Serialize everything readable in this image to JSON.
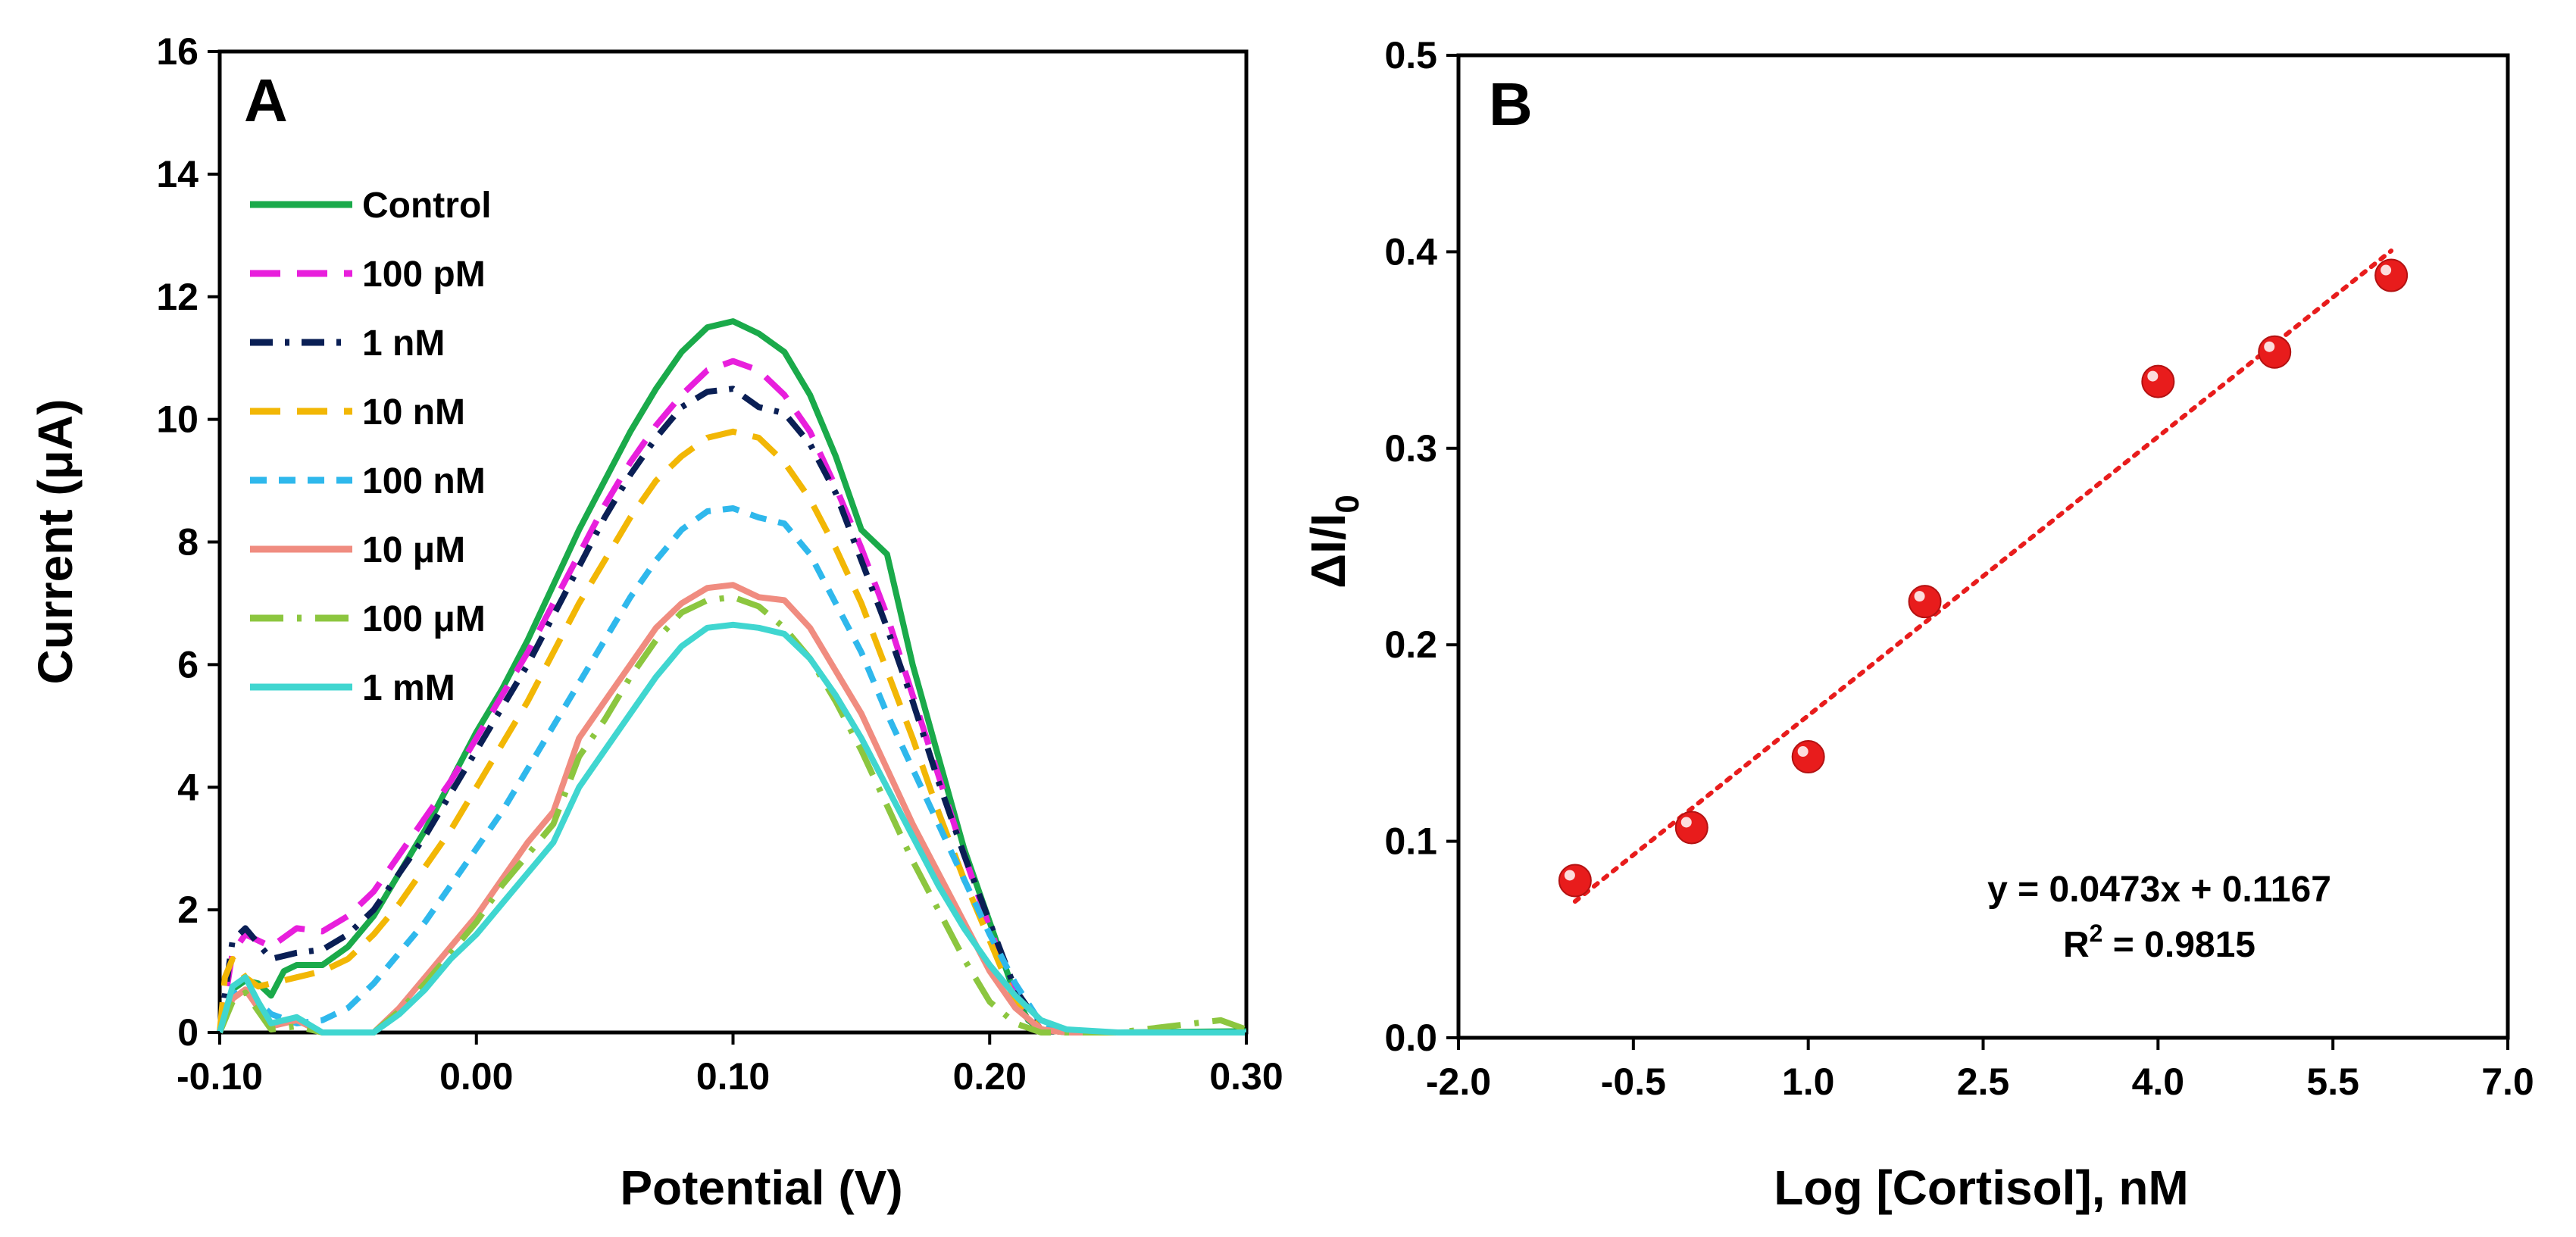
{
  "chart_data": [
    {
      "panel": "A",
      "type": "line",
      "title": "",
      "xlabel": "Potential (V)",
      "ylabel": "Current (μA)",
      "xlim": [
        -0.1,
        0.3
      ],
      "ylim": [
        0,
        16
      ],
      "x_ticks": [
        -0.1,
        0.0,
        0.1,
        0.2,
        0.3
      ],
      "x_tick_labels": [
        "-0.10",
        "0.00",
        "0.10",
        "0.20",
        "0.30"
      ],
      "y_ticks": [
        0,
        2,
        4,
        6,
        8,
        10,
        12,
        14,
        16
      ],
      "y_tick_labels": [
        "0",
        "2",
        "4",
        "6",
        "8",
        "10",
        "12",
        "14",
        "16"
      ],
      "grid": false,
      "legend_position": "top-left",
      "series": [
        {
          "name": "Control",
          "color": "#1aaa4a",
          "dash": "solid",
          "x": [
            -0.1,
            -0.095,
            -0.09,
            -0.085,
            -0.08,
            -0.075,
            -0.07,
            -0.06,
            -0.05,
            -0.04,
            -0.03,
            -0.02,
            -0.01,
            0.0,
            0.01,
            0.02,
            0.03,
            0.04,
            0.05,
            0.06,
            0.07,
            0.08,
            0.09,
            0.1,
            0.11,
            0.12,
            0.13,
            0.14,
            0.15,
            0.16,
            0.17,
            0.18,
            0.19,
            0.2,
            0.21,
            0.215,
            0.22,
            0.23,
            0.25,
            0.3
          ],
          "y": [
            0.0,
            0.7,
            0.85,
            0.8,
            0.6,
            1.0,
            1.1,
            1.1,
            1.4,
            1.9,
            2.6,
            3.3,
            4.1,
            4.9,
            5.6,
            6.4,
            7.3,
            8.2,
            9.0,
            9.8,
            10.5,
            11.1,
            11.5,
            11.6,
            11.4,
            11.1,
            10.4,
            9.4,
            8.2,
            7.8,
            6.0,
            4.5,
            3.0,
            1.8,
            0.6,
            0.2,
            0.05,
            0.0,
            0.0,
            0.02
          ]
        },
        {
          "name": "100 pM",
          "color": "#e81fdc",
          "dash": "long-dash",
          "x": [
            -0.1,
            -0.095,
            -0.09,
            -0.085,
            -0.08,
            -0.07,
            -0.06,
            -0.05,
            -0.04,
            -0.03,
            -0.02,
            -0.01,
            0.0,
            0.01,
            0.02,
            0.03,
            0.04,
            0.05,
            0.06,
            0.07,
            0.08,
            0.09,
            0.1,
            0.11,
            0.12,
            0.13,
            0.14,
            0.15,
            0.16,
            0.17,
            0.18,
            0.19,
            0.2,
            0.21,
            0.22,
            0.23,
            0.25,
            0.3
          ],
          "y": [
            0.0,
            1.3,
            1.6,
            1.5,
            1.4,
            1.7,
            1.65,
            1.9,
            2.3,
            2.9,
            3.5,
            4.1,
            4.8,
            5.5,
            6.2,
            7.0,
            7.8,
            8.6,
            9.3,
            9.9,
            10.4,
            10.8,
            10.95,
            10.8,
            10.4,
            9.8,
            8.9,
            7.9,
            6.8,
            5.5,
            4.2,
            2.9,
            1.7,
            0.6,
            0.05,
            0.0,
            0.0,
            0.0
          ]
        },
        {
          "name": "1 nM",
          "color": "#0a1f55",
          "dash": "dash-dot",
          "x": [
            -0.1,
            -0.095,
            -0.09,
            -0.085,
            -0.08,
            -0.07,
            -0.06,
            -0.05,
            -0.04,
            -0.03,
            -0.02,
            -0.01,
            0.0,
            0.01,
            0.02,
            0.03,
            0.04,
            0.05,
            0.06,
            0.07,
            0.08,
            0.09,
            0.1,
            0.11,
            0.12,
            0.13,
            0.14,
            0.15,
            0.16,
            0.17,
            0.18,
            0.19,
            0.2,
            0.21,
            0.22,
            0.23,
            0.25,
            0.3
          ],
          "y": [
            0.0,
            1.5,
            1.7,
            1.45,
            1.2,
            1.3,
            1.35,
            1.6,
            2.0,
            2.6,
            3.2,
            3.9,
            4.6,
            5.3,
            6.0,
            6.8,
            7.6,
            8.4,
            9.1,
            9.7,
            10.2,
            10.45,
            10.5,
            10.2,
            10.1,
            9.6,
            8.8,
            7.7,
            6.6,
            5.4,
            4.1,
            2.9,
            1.8,
            0.7,
            0.1,
            0.0,
            0.0,
            0.0
          ]
        },
        {
          "name": "10 nM",
          "color": "#f2b705",
          "dash": "long-dash",
          "x": [
            -0.1,
            -0.098,
            -0.095,
            -0.09,
            -0.085,
            -0.08,
            -0.07,
            -0.06,
            -0.05,
            -0.04,
            -0.03,
            -0.02,
            -0.01,
            0.0,
            0.01,
            0.02,
            0.03,
            0.04,
            0.05,
            0.06,
            0.07,
            0.08,
            0.09,
            0.1,
            0.11,
            0.12,
            0.13,
            0.14,
            0.15,
            0.16,
            0.17,
            0.18,
            0.19,
            0.2,
            0.21,
            0.22,
            0.23,
            0.25,
            0.3
          ],
          "y": [
            0.0,
            0.9,
            1.2,
            0.9,
            0.75,
            0.8,
            0.9,
            1.0,
            1.2,
            1.6,
            2.1,
            2.7,
            3.3,
            4.0,
            4.7,
            5.4,
            6.2,
            7.0,
            7.7,
            8.4,
            9.0,
            9.4,
            9.7,
            9.8,
            9.7,
            9.3,
            8.7,
            7.9,
            7.0,
            5.9,
            4.8,
            3.6,
            2.5,
            1.5,
            0.5,
            0.05,
            0.0,
            0.0,
            0.0
          ]
        },
        {
          "name": "100 nM",
          "color": "#2fb8ec",
          "dash": "short-dash",
          "x": [
            -0.1,
            -0.095,
            -0.09,
            -0.085,
            -0.08,
            -0.07,
            -0.06,
            -0.05,
            -0.04,
            -0.03,
            -0.02,
            -0.01,
            0.0,
            0.01,
            0.02,
            0.03,
            0.04,
            0.05,
            0.06,
            0.07,
            0.08,
            0.09,
            0.1,
            0.11,
            0.12,
            0.13,
            0.14,
            0.15,
            0.16,
            0.17,
            0.18,
            0.19,
            0.2,
            0.21,
            0.22,
            0.23,
            0.25,
            0.3
          ],
          "y": [
            0.0,
            0.6,
            0.75,
            0.5,
            0.3,
            0.15,
            0.2,
            0.4,
            0.8,
            1.3,
            1.8,
            2.4,
            3.0,
            3.6,
            4.3,
            5.0,
            5.7,
            6.4,
            7.1,
            7.7,
            8.2,
            8.5,
            8.55,
            8.4,
            8.3,
            7.8,
            7.0,
            6.2,
            5.2,
            4.3,
            3.4,
            2.5,
            1.6,
            0.8,
            0.15,
            0.0,
            0.0,
            0.0
          ]
        },
        {
          "name": "10 μM",
          "color": "#f08c80",
          "dash": "solid",
          "x": [
            -0.1,
            -0.095,
            -0.09,
            -0.085,
            -0.08,
            -0.07,
            -0.06,
            -0.05,
            -0.04,
            -0.03,
            -0.02,
            -0.01,
            0.0,
            0.01,
            0.02,
            0.03,
            0.04,
            0.05,
            0.06,
            0.07,
            0.08,
            0.09,
            0.1,
            0.11,
            0.12,
            0.13,
            0.14,
            0.15,
            0.16,
            0.17,
            0.18,
            0.19,
            0.2,
            0.21,
            0.22,
            0.23,
            0.25,
            0.3
          ],
          "y": [
            0.0,
            0.55,
            0.7,
            0.4,
            0.1,
            0.2,
            0.0,
            0.0,
            0.0,
            0.4,
            0.9,
            1.4,
            1.9,
            2.5,
            3.1,
            3.6,
            4.8,
            5.4,
            6.0,
            6.6,
            7.0,
            7.25,
            7.3,
            7.1,
            7.05,
            6.6,
            5.9,
            5.2,
            4.3,
            3.4,
            2.6,
            1.8,
            1.0,
            0.4,
            0.05,
            0.0,
            0.0,
            0.0
          ]
        },
        {
          "name": "100 μM",
          "color": "#8cc63f",
          "dash": "long-dash-dot",
          "x": [
            -0.1,
            -0.095,
            -0.09,
            -0.085,
            -0.08,
            -0.07,
            -0.06,
            -0.05,
            -0.04,
            -0.03,
            -0.02,
            -0.01,
            0.0,
            0.01,
            0.02,
            0.03,
            0.04,
            0.05,
            0.06,
            0.07,
            0.08,
            0.09,
            0.1,
            0.11,
            0.12,
            0.13,
            0.14,
            0.15,
            0.16,
            0.17,
            0.18,
            0.19,
            0.2,
            0.21,
            0.22,
            0.23,
            0.25,
            0.29,
            0.3
          ],
          "y": [
            0.0,
            0.5,
            0.65,
            0.35,
            0.05,
            0.1,
            0.0,
            0.0,
            0.0,
            0.35,
            0.8,
            1.3,
            1.8,
            2.4,
            2.9,
            3.4,
            4.5,
            5.1,
            5.8,
            6.4,
            6.85,
            7.05,
            7.1,
            6.95,
            6.6,
            6.1,
            5.4,
            4.6,
            3.7,
            2.8,
            2.0,
            1.2,
            0.5,
            0.15,
            0.0,
            0.0,
            0.0,
            0.2,
            0.05
          ]
        },
        {
          "name": "1 mM",
          "color": "#40d6d0",
          "dash": "solid",
          "x": [
            -0.1,
            -0.095,
            -0.09,
            -0.085,
            -0.08,
            -0.07,
            -0.06,
            -0.05,
            -0.04,
            -0.03,
            -0.02,
            -0.01,
            0.0,
            0.01,
            0.02,
            0.03,
            0.04,
            0.05,
            0.06,
            0.07,
            0.08,
            0.09,
            0.1,
            0.11,
            0.12,
            0.13,
            0.14,
            0.15,
            0.16,
            0.17,
            0.18,
            0.19,
            0.2,
            0.21,
            0.22,
            0.23,
            0.25,
            0.3
          ],
          "y": [
            0.0,
            0.75,
            0.9,
            0.5,
            0.15,
            0.25,
            0.0,
            0.0,
            0.0,
            0.3,
            0.7,
            1.2,
            1.6,
            2.1,
            2.6,
            3.1,
            4.0,
            4.6,
            5.2,
            5.8,
            6.3,
            6.6,
            6.65,
            6.6,
            6.5,
            6.1,
            5.5,
            4.8,
            4.0,
            3.2,
            2.4,
            1.7,
            1.1,
            0.6,
            0.2,
            0.05,
            0.0,
            0.0
          ]
        }
      ]
    },
    {
      "panel": "B",
      "type": "scatter",
      "title": "",
      "xlabel": "Log [Cortisol], nM",
      "ylabel": "ΔI/I",
      "ylabel_subscript": "0",
      "xlim": [
        -2.0,
        7.0
      ],
      "ylim": [
        0.0,
        0.5
      ],
      "x_ticks": [
        -2.0,
        -0.5,
        1.0,
        2.5,
        4.0,
        5.5,
        7.0
      ],
      "x_tick_labels": [
        "-2.0",
        "-0.5",
        "1.0",
        "2.5",
        "4.0",
        "5.5",
        "7.0"
      ],
      "y_ticks": [
        0.0,
        0.1,
        0.2,
        0.3,
        0.4,
        0.5
      ],
      "y_tick_labels": [
        "0.0",
        "0.1",
        "0.2",
        "0.3",
        "0.4",
        "0.5"
      ],
      "grid": false,
      "marker_color": "#e81c1c",
      "points": [
        {
          "x": -1,
          "y": 0.08
        },
        {
          "x": 0,
          "y": 0.107
        },
        {
          "x": 1,
          "y": 0.143
        },
        {
          "x": 2,
          "y": 0.222
        },
        {
          "x": 4,
          "y": 0.334
        },
        {
          "x": 5,
          "y": 0.349
        },
        {
          "x": 6,
          "y": 0.388
        }
      ],
      "trendline": {
        "slope": 0.0473,
        "intercept": 0.1167,
        "x_range": [
          -1,
          6
        ],
        "style": "dotted",
        "color": "#e81c1c"
      },
      "equation_text": "y = 0.0473x + 0.1167",
      "r2_prefix": "R",
      "r2_sup": "2",
      "r2_suffix": " = 0.9815"
    }
  ]
}
